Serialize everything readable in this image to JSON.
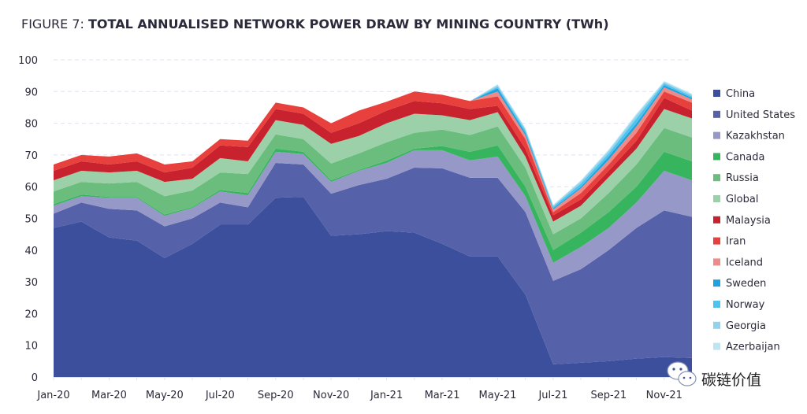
{
  "chart_data": {
    "type": "area",
    "stacked": true,
    "title_prefix": "FIGURE 7: ",
    "title": "TOTAL ANNUALISED NETWORK POWER DRAW BY MINING COUNTRY (TWh)",
    "xlabel": "",
    "ylabel": "",
    "ylim": [
      0,
      100
    ],
    "yticks": [
      0,
      10,
      20,
      30,
      40,
      50,
      60,
      70,
      80,
      90,
      100
    ],
    "grid": "horizontal dashed",
    "legend_position": "right",
    "categories": [
      "Jan-20",
      "Feb-20",
      "Mar-20",
      "Apr-20",
      "May-20",
      "Jun-20",
      "Jul-20",
      "Aug-20",
      "Sep-20",
      "Oct-20",
      "Nov-20",
      "Dec-20",
      "Jan-21",
      "Feb-21",
      "Mar-21",
      "Apr-21",
      "May-21",
      "Jun-21",
      "Jul-21",
      "Aug-21",
      "Sep-21",
      "Oct-21",
      "Nov-21",
      "Dec-21"
    ],
    "xtick_labels": [
      "Jan-20",
      "Mar-20",
      "May-20",
      "Jul-20",
      "Sep-20",
      "Nov-20",
      "Jan-21",
      "Mar-21",
      "May-21",
      "Jul-21",
      "Sep-21",
      "Nov-21"
    ],
    "series": [
      {
        "name": "China",
        "color": "#3c4f9c",
        "values": [
          47,
          49,
          44,
          43,
          37.5,
          42,
          48,
          48,
          56.5,
          56.8,
          44.5,
          45,
          46,
          45.5,
          42,
          38,
          38,
          26,
          4,
          4.5,
          5,
          5.8,
          6.3,
          6
        ]
      },
      {
        "name": "United States",
        "color": "#5561a8",
        "values": [
          4.5,
          6,
          9,
          9.5,
          10,
          8,
          7,
          5.5,
          11,
          10.2,
          13.3,
          15.5,
          16.5,
          20.5,
          23.8,
          24.8,
          24.8,
          26,
          26.3,
          29.5,
          35,
          41.2,
          46.2,
          44.5
        ]
      },
      {
        "name": "Kazakhstan",
        "color": "#9698c8",
        "values": [
          2.5,
          2,
          3.5,
          4,
          3.3,
          3.3,
          3.5,
          3.8,
          3.5,
          3.3,
          3.7,
          4.5,
          5,
          5.5,
          5.7,
          5.5,
          6.7,
          5,
          5.7,
          7,
          7,
          8,
          12.5,
          11.5
        ]
      },
      {
        "name": "Canada",
        "color": "#36b45e",
        "values": [
          0.5,
          0.5,
          0.3,
          0.3,
          0.4,
          0.3,
          0.5,
          0.7,
          1,
          0.7,
          0.5,
          0.3,
          0.7,
          0.5,
          1.3,
          2.7,
          3.5,
          3,
          4,
          4.5,
          5,
          5,
          6,
          6
        ]
      },
      {
        "name": "Russia",
        "color": "#6abd7c",
        "values": [
          4,
          4,
          4.2,
          4.7,
          5.8,
          5.2,
          5.5,
          6,
          4.5,
          4,
          5.3,
          5.2,
          5.8,
          5,
          5.2,
          5.3,
          6,
          6,
          5,
          4.5,
          6,
          7,
          7.5,
          7.5
        ]
      },
      {
        "name": "Global",
        "color": "#9bd0a8",
        "values": [
          3.5,
          3.5,
          3.5,
          3.5,
          4.5,
          3.7,
          4.5,
          4,
          4.5,
          4.5,
          6.2,
          5.5,
          6,
          6,
          4.5,
          4.7,
          4.5,
          3.5,
          4,
          4,
          5,
          5,
          6,
          6
        ]
      },
      {
        "name": "Malaysia",
        "color": "#c8222e",
        "values": [
          3,
          3,
          2.5,
          3,
          3,
          3.5,
          4,
          4.5,
          3.5,
          3.5,
          3.5,
          4,
          4,
          4,
          3.8,
          3.5,
          2,
          2.5,
          2,
          2,
          2,
          2.5,
          3.5,
          2.5
        ]
      },
      {
        "name": "Iran",
        "color": "#e8403c",
        "values": [
          2,
          2,
          2.5,
          2.5,
          2.5,
          2,
          2,
          2,
          2,
          2,
          3,
          4,
          2.8,
          3,
          2.7,
          2.5,
          3,
          3,
          1,
          2,
          2,
          2.5,
          2,
          2.5
        ]
      },
      {
        "name": "Iceland",
        "color": "#ee8a88",
        "values": [
          0,
          0,
          0,
          0,
          0,
          0,
          0,
          0,
          0,
          0,
          0,
          0,
          0,
          0,
          0,
          0,
          1.5,
          1.2,
          0.8,
          1.5,
          1.5,
          2,
          1.3,
          1
        ]
      },
      {
        "name": "Sweden",
        "color": "#1fa3dc",
        "values": [
          0,
          0,
          0,
          0,
          0,
          0,
          0,
          0,
          0,
          0,
          0,
          0,
          0,
          0,
          0,
          0,
          1,
          0.8,
          0.4,
          0.5,
          1,
          1,
          0.7,
          0.5
        ]
      },
      {
        "name": "Norway",
        "color": "#4fc3ee",
        "values": [
          0,
          0,
          0,
          0,
          0,
          0,
          0,
          0,
          0,
          0,
          0,
          0,
          0,
          0,
          0,
          0,
          0.5,
          0.7,
          0.5,
          1,
          1,
          1.5,
          0.6,
          0.5
        ]
      },
      {
        "name": "Georgia",
        "color": "#8fd3ef",
        "values": [
          0,
          0,
          0,
          0,
          0,
          0,
          0,
          0,
          0,
          0,
          0,
          0,
          0,
          0,
          0,
          0,
          0.5,
          0.5,
          0.3,
          0.7,
          0.8,
          1,
          0.4,
          0.5
        ]
      },
      {
        "name": "Azerbaijan",
        "color": "#bde5f2",
        "values": [
          0,
          0,
          0,
          0,
          0,
          0,
          0,
          0,
          0,
          0,
          0,
          0,
          0,
          0,
          0,
          0,
          0.3,
          0.3,
          0.3,
          0.3,
          0.4,
          0.5,
          0.3,
          0.3
        ]
      }
    ]
  },
  "watermark": {
    "text": "碳链价值",
    "icon": "wechat-icon"
  }
}
